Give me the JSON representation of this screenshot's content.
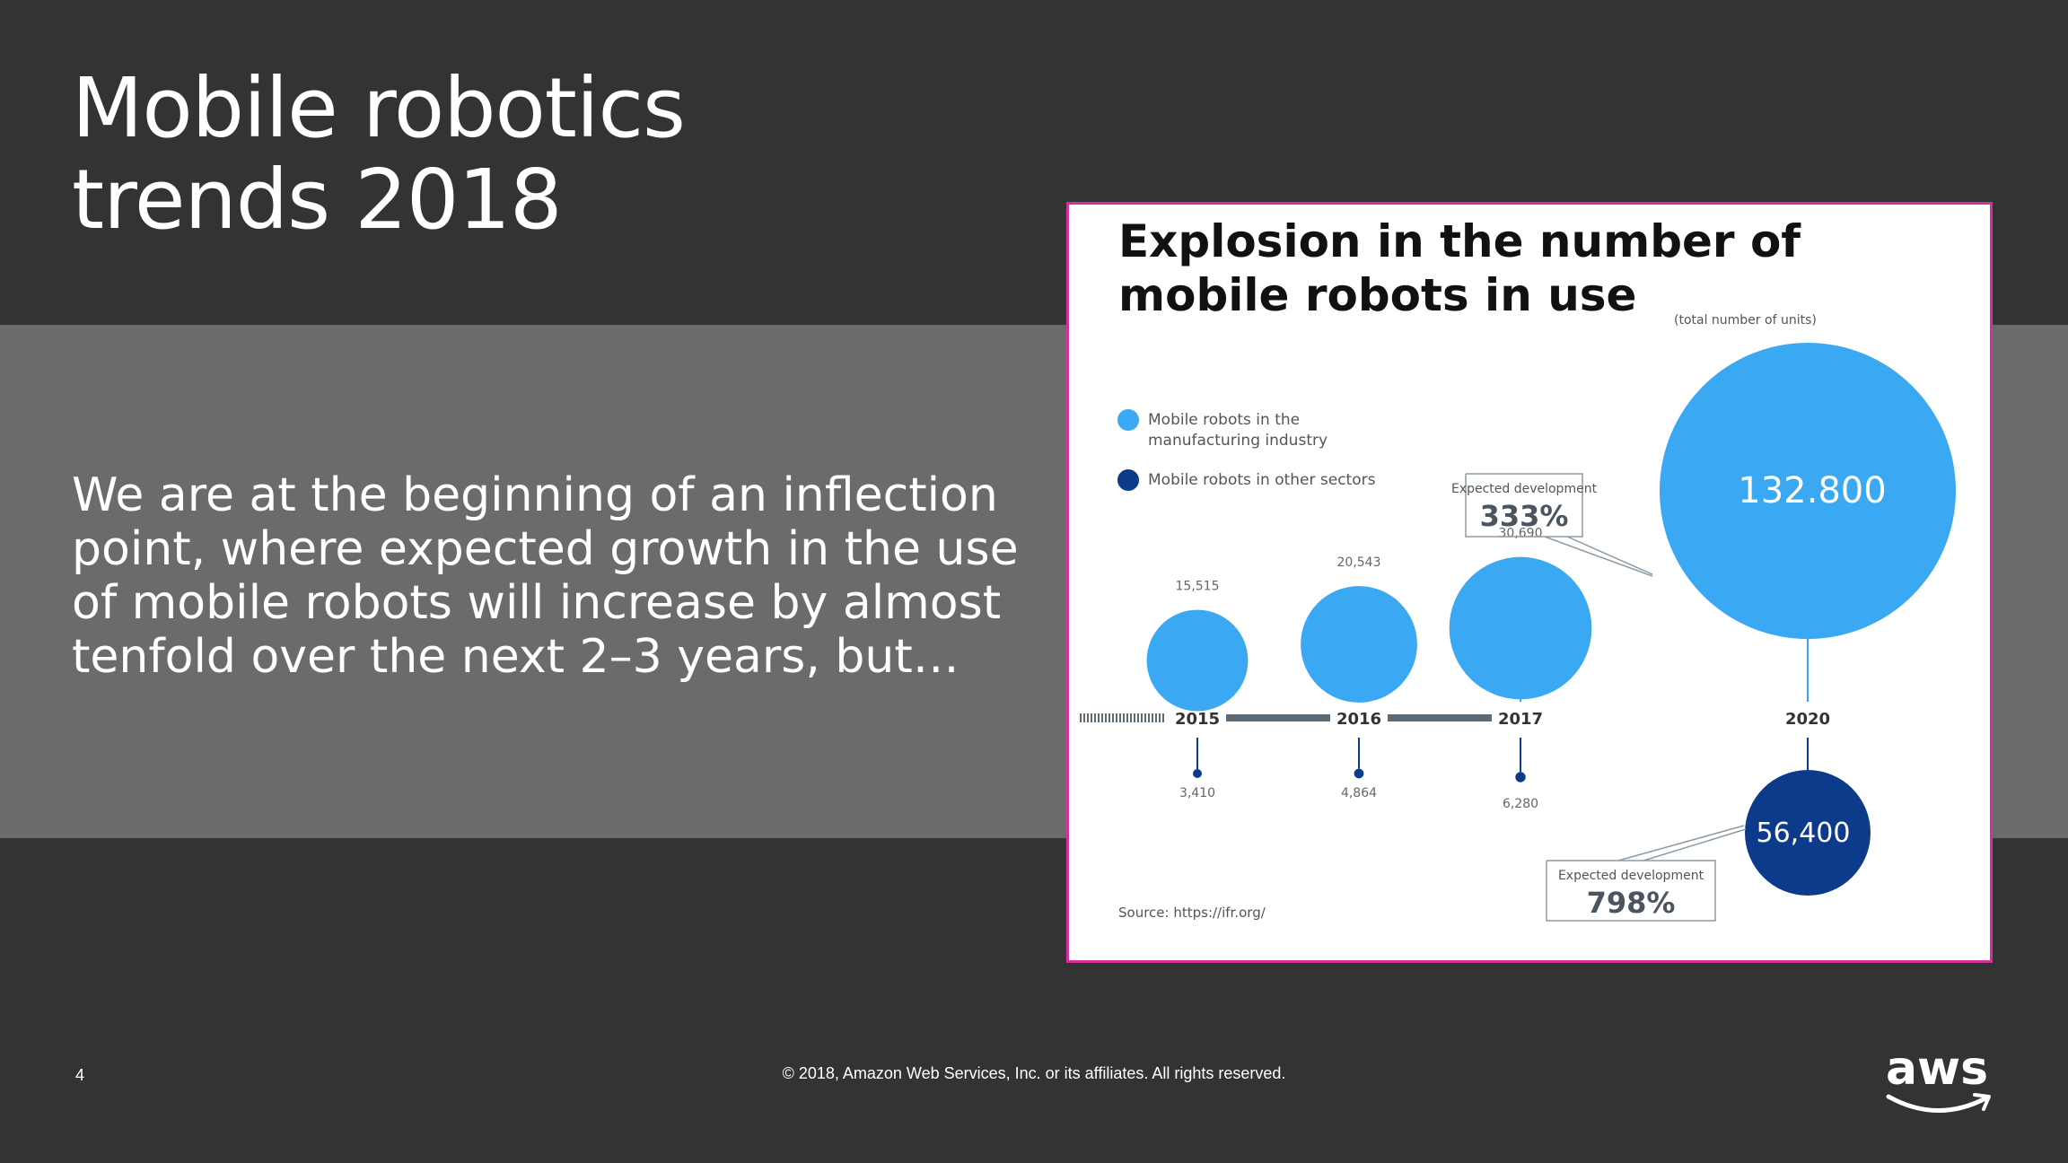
{
  "slide": {
    "title_lines": [
      "Mobile robotics",
      "trends 2018"
    ],
    "body": "We are at the beginning of an inflection point, where expected growth in the use of mobile robots will increase by almost tenfold over the next 2–3 years, but…",
    "page_number": "4",
    "copyright": "© 2018, Amazon Web Services, Inc. or its affiliates. All rights reserved.",
    "logo_text": "aws",
    "colors": {
      "background": "#333333",
      "band": "#6b6b6b",
      "frame": "#d6309c",
      "manufacturing": "#3aa8f2",
      "other": "#0d3b8c",
      "axis": "#5f6b74"
    }
  },
  "infographic": {
    "title_line1": "Explosion in the number of",
    "title_line2": "mobile robots in use",
    "subtitle": "(total number of units)",
    "legend": [
      {
        "lines": [
          "Mobile robots in the",
          "manufacturing industry"
        ],
        "color": "#3aa8f2"
      },
      {
        "lines": [
          "Mobile robots in other sectors"
        ],
        "color": "#0d3b8c"
      }
    ],
    "source": "Source: https://ifr.org/",
    "callouts": [
      {
        "label": "Expected development",
        "value": "333%"
      },
      {
        "label": "Expected development",
        "value": "798%"
      }
    ]
  },
  "chart_data": {
    "type": "bubble",
    "title": "Explosion in the number of mobile robots in use",
    "subtitle": "(total number of units)",
    "categories": [
      "2015",
      "2016",
      "2017",
      "2020"
    ],
    "series": [
      {
        "name": "Mobile robots in the manufacturing industry",
        "values": [
          15515,
          20543,
          30690,
          132800
        ],
        "labels": [
          "15,515",
          "20,543",
          "30,690",
          "132.800"
        ],
        "color": "#3aa8f2"
      },
      {
        "name": "Mobile robots in other sectors",
        "values": [
          3410,
          4864,
          6280,
          56400
        ],
        "labels": [
          "3,410",
          "4,864",
          "6,280",
          "56,400"
        ],
        "color": "#0d3b8c"
      }
    ]
  }
}
